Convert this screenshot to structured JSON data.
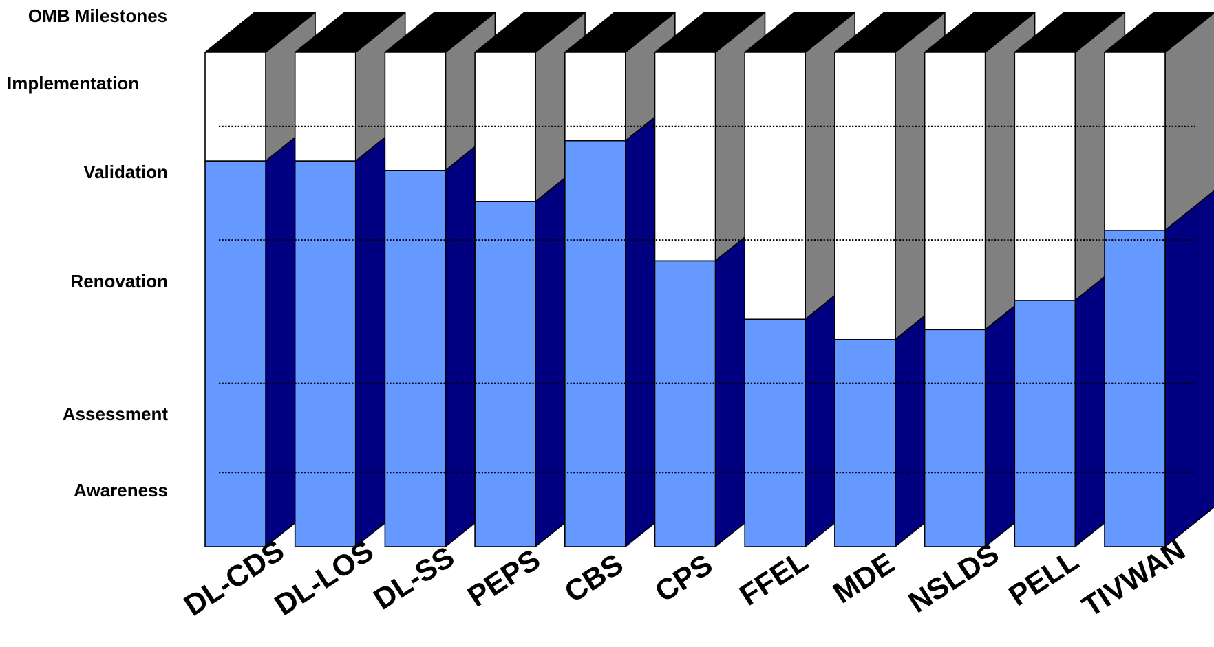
{
  "chart_data": {
    "type": "bar",
    "title": "OMB Milestones",
    "levels": [
      "Implementation",
      "Validation",
      "Renovation",
      "Assessment",
      "Awareness"
    ],
    "categories": [
      "DL-CDS",
      "DL-LOS",
      "DL-SS",
      "PEPS",
      "CBS",
      "CPS",
      "FFEL",
      "MDE",
      "NSLDS",
      "PELL",
      "TIVWAN"
    ],
    "values": [
      78,
      78,
      76.1,
      69.8,
      82.1,
      57.8,
      46,
      41.9,
      43.9,
      49.8,
      64
    ],
    "ylim": [
      0,
      100
    ],
    "level_boundaries": [
      15,
      33,
      62,
      85
    ],
    "grid": "dotted horizontal lines",
    "colors": {
      "fill_front": "#6699ff",
      "fill_side": "#000080",
      "empty_front": "#ffffff",
      "empty_side": "#808080",
      "top": "#000000"
    }
  }
}
